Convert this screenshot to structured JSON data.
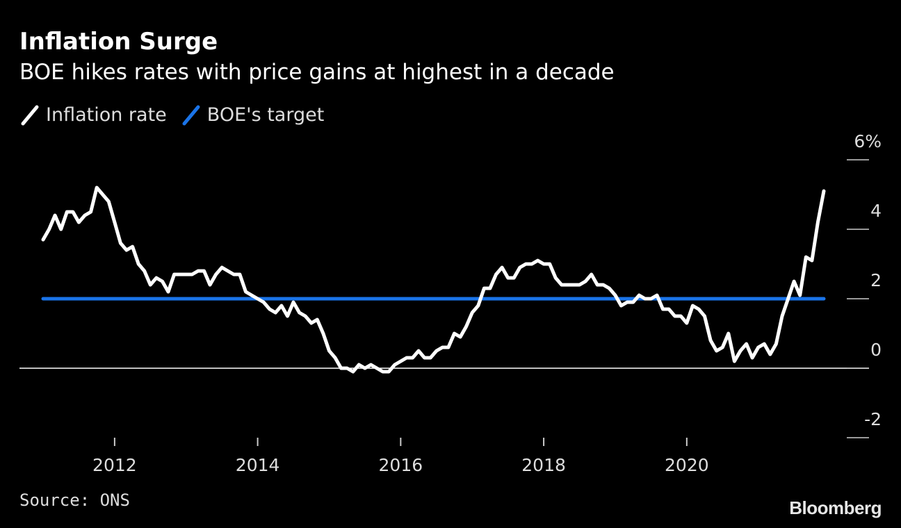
{
  "chart_data": {
    "type": "line",
    "title": "Inflation Surge",
    "subtitle": "BOE hikes rates with price gains at highest in a decade",
    "legend": [
      "Inflation rate",
      "BOE's target"
    ],
    "legend_placement": "top-left",
    "ylim": [
      -2,
      6
    ],
    "y_ticks": [
      -2,
      0,
      2,
      4,
      6
    ],
    "y_tick_labels": [
      "-2",
      "0",
      "2",
      "4",
      "6%"
    ],
    "x_ticks": [
      2012,
      2014,
      2016,
      2018,
      2020
    ],
    "xlim": [
      "2011-01",
      "2021-11"
    ],
    "grid": false,
    "series": [
      {
        "name": "Inflation rate",
        "color": "#ffffff",
        "points": [
          [
            "2011-01",
            3.7
          ],
          [
            "2011-02",
            4.0
          ],
          [
            "2011-03",
            4.4
          ],
          [
            "2011-04",
            4.0
          ],
          [
            "2011-05",
            4.5
          ],
          [
            "2011-06",
            4.5
          ],
          [
            "2011-07",
            4.2
          ],
          [
            "2011-08",
            4.4
          ],
          [
            "2011-09",
            4.5
          ],
          [
            "2011-10",
            5.2
          ],
          [
            "2011-11",
            5.0
          ],
          [
            "2011-12",
            4.8
          ],
          [
            "2012-01",
            4.2
          ],
          [
            "2012-02",
            3.6
          ],
          [
            "2012-03",
            3.4
          ],
          [
            "2012-04",
            3.5
          ],
          [
            "2012-05",
            3.0
          ],
          [
            "2012-06",
            2.8
          ],
          [
            "2012-07",
            2.4
          ],
          [
            "2012-08",
            2.6
          ],
          [
            "2012-09",
            2.5
          ],
          [
            "2012-10",
            2.2
          ],
          [
            "2012-11",
            2.7
          ],
          [
            "2012-12",
            2.7
          ],
          [
            "2013-01",
            2.7
          ],
          [
            "2013-02",
            2.7
          ],
          [
            "2013-03",
            2.8
          ],
          [
            "2013-04",
            2.8
          ],
          [
            "2013-05",
            2.4
          ],
          [
            "2013-06",
            2.7
          ],
          [
            "2013-07",
            2.9
          ],
          [
            "2013-08",
            2.8
          ],
          [
            "2013-09",
            2.7
          ],
          [
            "2013-10",
            2.7
          ],
          [
            "2013-11",
            2.2
          ],
          [
            "2013-12",
            2.1
          ],
          [
            "2014-01",
            2.0
          ],
          [
            "2014-02",
            1.9
          ],
          [
            "2014-03",
            1.7
          ],
          [
            "2014-04",
            1.6
          ],
          [
            "2014-05",
            1.8
          ],
          [
            "2014-06",
            1.5
          ],
          [
            "2014-07",
            1.9
          ],
          [
            "2014-08",
            1.6
          ],
          [
            "2014-09",
            1.5
          ],
          [
            "2014-10",
            1.3
          ],
          [
            "2014-11",
            1.4
          ],
          [
            "2014-12",
            1.0
          ],
          [
            "2015-01",
            0.5
          ],
          [
            "2015-02",
            0.3
          ],
          [
            "2015-03",
            0.0
          ],
          [
            "2015-04",
            0.0
          ],
          [
            "2015-05",
            -0.1
          ],
          [
            "2015-06",
            0.1
          ],
          [
            "2015-07",
            0.0
          ],
          [
            "2015-08",
            0.1
          ],
          [
            "2015-09",
            0.0
          ],
          [
            "2015-10",
            -0.1
          ],
          [
            "2015-11",
            -0.1
          ],
          [
            "2015-12",
            0.1
          ],
          [
            "2016-01",
            0.2
          ],
          [
            "2016-02",
            0.3
          ],
          [
            "2016-03",
            0.3
          ],
          [
            "2016-04",
            0.5
          ],
          [
            "2016-05",
            0.3
          ],
          [
            "2016-06",
            0.3
          ],
          [
            "2016-07",
            0.5
          ],
          [
            "2016-08",
            0.6
          ],
          [
            "2016-09",
            0.6
          ],
          [
            "2016-10",
            1.0
          ],
          [
            "2016-11",
            0.9
          ],
          [
            "2016-12",
            1.2
          ],
          [
            "2017-01",
            1.6
          ],
          [
            "2017-02",
            1.8
          ],
          [
            "2017-03",
            2.3
          ],
          [
            "2017-04",
            2.3
          ],
          [
            "2017-05",
            2.7
          ],
          [
            "2017-06",
            2.9
          ],
          [
            "2017-07",
            2.6
          ],
          [
            "2017-08",
            2.6
          ],
          [
            "2017-09",
            2.9
          ],
          [
            "2017-10",
            3.0
          ],
          [
            "2017-11",
            3.0
          ],
          [
            "2017-12",
            3.1
          ],
          [
            "2018-01",
            3.0
          ],
          [
            "2018-02",
            3.0
          ],
          [
            "2018-03",
            2.6
          ],
          [
            "2018-04",
            2.4
          ],
          [
            "2018-05",
            2.4
          ],
          [
            "2018-06",
            2.4
          ],
          [
            "2018-07",
            2.4
          ],
          [
            "2018-08",
            2.5
          ],
          [
            "2018-09",
            2.7
          ],
          [
            "2018-10",
            2.4
          ],
          [
            "2018-11",
            2.4
          ],
          [
            "2018-12",
            2.3
          ],
          [
            "2019-01",
            2.1
          ],
          [
            "2019-02",
            1.8
          ],
          [
            "2019-03",
            1.9
          ],
          [
            "2019-04",
            1.9
          ],
          [
            "2019-05",
            2.1
          ],
          [
            "2019-06",
            2.0
          ],
          [
            "2019-07",
            2.0
          ],
          [
            "2019-08",
            2.1
          ],
          [
            "2019-09",
            1.7
          ],
          [
            "2019-10",
            1.7
          ],
          [
            "2019-11",
            1.5
          ],
          [
            "2019-12",
            1.5
          ],
          [
            "2020-01",
            1.3
          ],
          [
            "2020-02",
            1.8
          ],
          [
            "2020-03",
            1.7
          ],
          [
            "2020-04",
            1.5
          ],
          [
            "2020-05",
            0.8
          ],
          [
            "2020-06",
            0.5
          ],
          [
            "2020-07",
            0.6
          ],
          [
            "2020-08",
            1.0
          ],
          [
            "2020-09",
            0.2
          ],
          [
            "2020-10",
            0.5
          ],
          [
            "2020-11",
            0.7
          ],
          [
            "2020-12",
            0.3
          ],
          [
            "2021-01",
            0.6
          ],
          [
            "2021-02",
            0.7
          ],
          [
            "2021-03",
            0.4
          ],
          [
            "2021-04",
            0.7
          ],
          [
            "2021-05",
            1.5
          ],
          [
            "2021-06",
            2.0
          ],
          [
            "2021-07",
            2.5
          ],
          [
            "2021-08",
            2.1
          ],
          [
            "2021-09",
            3.2
          ],
          [
            "2021-10",
            3.1
          ],
          [
            "2021-11",
            4.2
          ],
          [
            "2021-12",
            5.1
          ]
        ]
      },
      {
        "name": "BOE's target",
        "color": "#1a74e8",
        "points": [
          [
            "2011-01",
            2
          ],
          [
            "2021-12",
            2
          ]
        ]
      }
    ]
  },
  "footer": {
    "source": "Source: ONS",
    "brand": "Bloomberg"
  }
}
